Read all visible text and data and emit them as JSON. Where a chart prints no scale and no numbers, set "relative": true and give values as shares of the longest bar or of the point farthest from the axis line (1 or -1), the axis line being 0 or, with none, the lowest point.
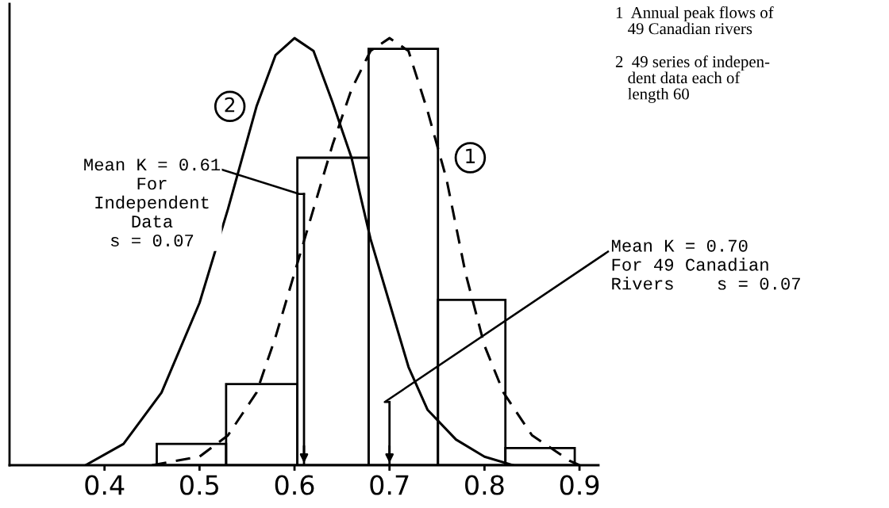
{
  "chart_data": {
    "type": "histogram",
    "relative": true,
    "color": "#000000",
    "bins": [
      0.455,
      0.528,
      0.603,
      0.678,
      0.751,
      0.822,
      0.895
    ],
    "values": [
      0.05,
      0.19,
      0.72,
      0.975,
      0.387,
      0.04
    ],
    "series": [
      {
        "name": "1",
        "type": "line",
        "line_style": "dashed",
        "color": "#000000",
        "x": [
          0.45,
          0.5,
          0.53,
          0.56,
          0.58,
          0.6,
          0.62,
          0.64,
          0.66,
          0.68,
          0.7,
          0.72,
          0.74,
          0.76,
          0.78,
          0.8,
          0.82,
          0.85,
          0.89,
          0.9
        ],
        "values": [
          0,
          0.02,
          0.07,
          0.17,
          0.3,
          0.45,
          0.6,
          0.75,
          0.88,
          0.97,
          1.0,
          0.97,
          0.83,
          0.67,
          0.45,
          0.28,
          0.17,
          0.07,
          0.01,
          0
        ]
      },
      {
        "name": "2",
        "type": "line",
        "line_style": "solid",
        "color": "#000000",
        "x": [
          0.38,
          0.42,
          0.46,
          0.5,
          0.53,
          0.56,
          0.58,
          0.6,
          0.62,
          0.64,
          0.66,
          0.68,
          0.7,
          0.72,
          0.74,
          0.77,
          0.8,
          0.83
        ],
        "values": [
          0,
          0.05,
          0.17,
          0.38,
          0.6,
          0.84,
          0.96,
          1.0,
          0.97,
          0.85,
          0.72,
          0.53,
          0.38,
          0.23,
          0.13,
          0.06,
          0.02,
          0
        ]
      }
    ],
    "ref_lines": [
      {
        "axis": "x",
        "value": 0.61,
        "label": "Mean K = 0.61\nFor\nIndependent\nData\ns = 0.07"
      },
      {
        "axis": "x",
        "value": 0.7,
        "label": "Mean K = 0.70\nFor 49 Canadian\nRivers    s = 0.07"
      }
    ],
    "xlim": [
      0.3,
      0.92
    ],
    "xticks": [
      0.4,
      0.5,
      0.6,
      0.7,
      0.8,
      0.9
    ],
    "tick_labels": "x",
    "annotations": [
      "1  Annual peak flows of\n   49 Canadian rivers",
      "2  49 series of indepen-\n   dent data each of\n   length 60"
    ]
  }
}
